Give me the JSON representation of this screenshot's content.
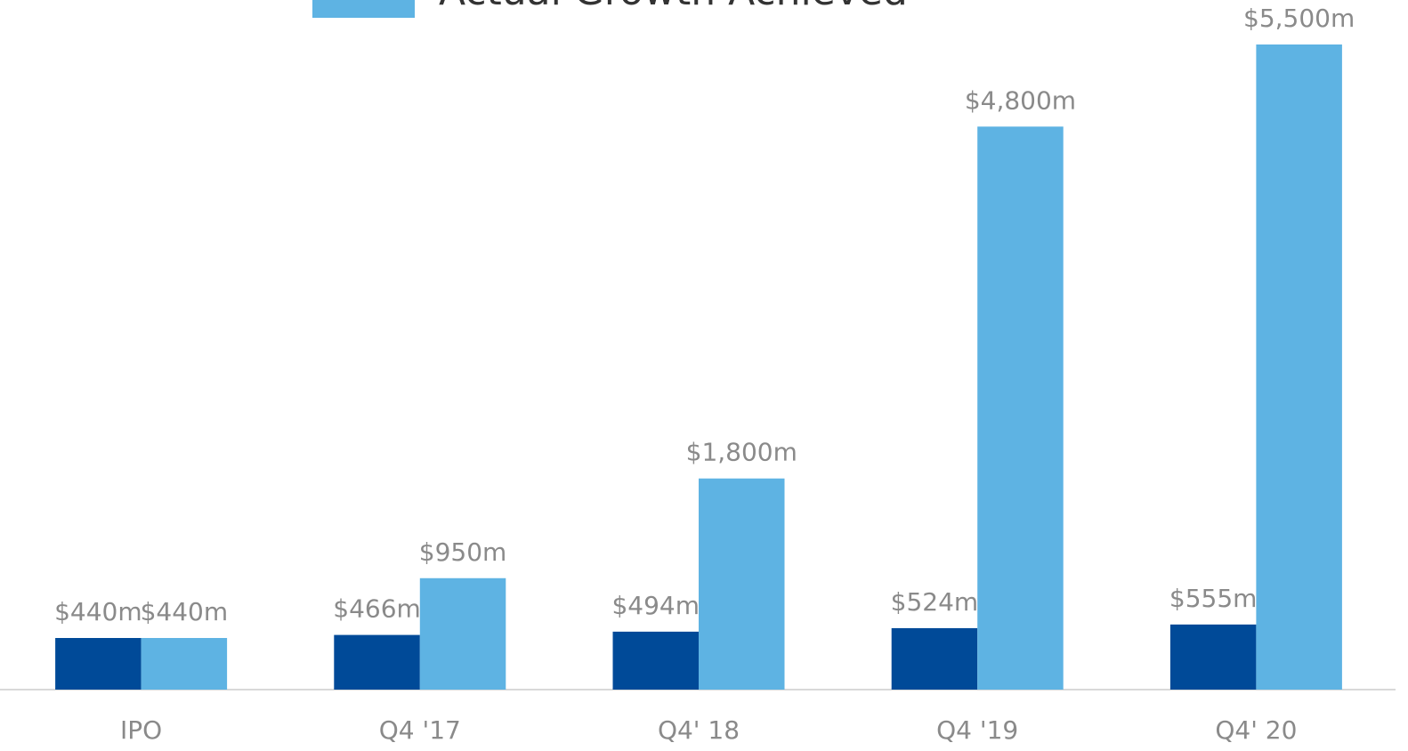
{
  "chart_data": {
    "type": "bar",
    "categories": [
      "IPO",
      "Q4 '17",
      "Q4' 18",
      "Q4 '19",
      "Q4' 20"
    ],
    "series": [
      {
        "color": "#004a98",
        "values": [
          440,
          466,
          494,
          524,
          555
        ],
        "value_labels": [
          "$440m",
          "$466m",
          "$494m",
          "$524m",
          "$555m"
        ]
      },
      {
        "name": "Actual Growth Achieved",
        "color": "#5eb3e3",
        "values": [
          440,
          950,
          1800,
          4800,
          5500
        ],
        "value_labels": [
          "$440m",
          "$950m",
          "$1,800m",
          "$4,800m",
          "$5,500m"
        ]
      }
    ],
    "ylim": [
      0,
      5500
    ]
  }
}
